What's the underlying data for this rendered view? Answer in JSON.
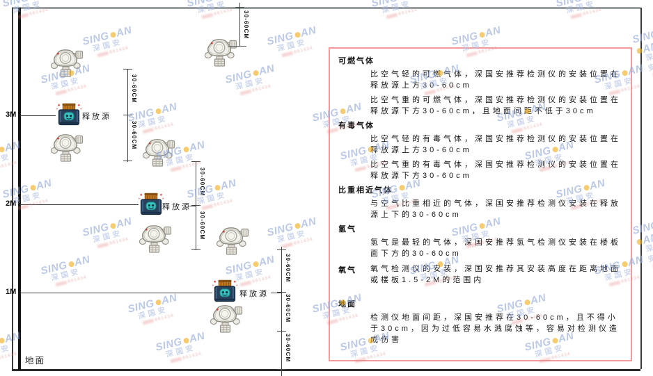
{
  "diagram": {
    "ground_label": "地面",
    "height_labels": [
      "3M",
      "2M",
      "1M"
    ],
    "release_source_label": "释放源",
    "dimension_label": "30-60CM",
    "detector_icon": "gas-detector",
    "release_icon": "release-source"
  },
  "panel": {
    "border_color": "#f59a9a",
    "sections": [
      {
        "heading": "可燃气体",
        "paragraphs": [
          "比空气轻的可燃气体，深国安推荐检测仪的安装位置在释放源上方30-60cm",
          "比空气重的可燃气体，深国安推荐检测仪的安装位置在释放源下方30-60cm，且地面间距不低于30cm"
        ]
      },
      {
        "heading": "有毒气体",
        "paragraphs": [
          "比空气轻的有毒气体，深国安推荐检测仪的安装位置在释放源上方30-60cm",
          "比空气重的有毒气体，深国安推荐检测仪的安装位置在释放源下方30-60cm"
        ]
      },
      {
        "heading": "比重相近气体",
        "paragraphs": [
          "与空气比重相近的气体，深国安推荐检测仪安装在释放源上下的30-60cm"
        ]
      },
      {
        "heading": "氢气",
        "paragraphs": [
          "氢气是最轻的气体，深国安推荐氢气检测仪安装在楼板面下方的30-60cm"
        ]
      },
      {
        "heading": "氧气",
        "paragraphs": [
          "氧气检测仪的安装，深国安推荐其安装高度在距离地面或楼板1.5-2M的范围内"
        ]
      },
      {
        "heading": "地面",
        "paragraphs": [
          "检测仪地面间距，深国安推荐在30-60cm，且不得小于30cm，因为过低容易水溅腐蚀等，容易对检测仪造成伤害"
        ]
      }
    ]
  },
  "watermark": {
    "brand_left": "SING",
    "brand_right": "AN",
    "cn_text": "深国安",
    "sub_text": "661434",
    "brand_color": "#93a9d8",
    "dot_color": "#f2ae1e"
  }
}
